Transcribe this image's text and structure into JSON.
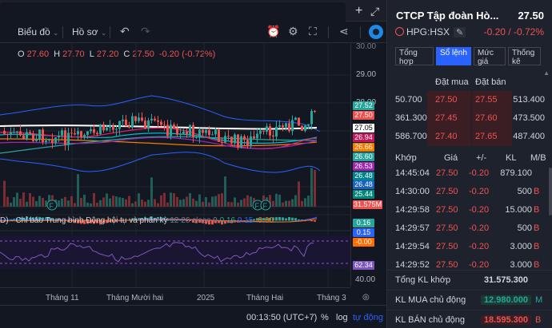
{
  "tabstrip": {
    "add": "+",
    "expand": "⤢"
  },
  "toolbar": {
    "indicators_label": "Biểu đồ",
    "profile_label": "Hồ sơ"
  },
  "legend": {
    "o_label": "O",
    "o": "27.60",
    "h_label": "H",
    "h": "27.70",
    "l_label": "L",
    "l": "27.20",
    "c_label": "C",
    "c": "27.50",
    "change": "-0.20 (-0.72%)"
  },
  "price_axis": {
    "ticks": [
      "30.00",
      "29.00",
      "28.00"
    ],
    "tags": [
      {
        "text": "27.52",
        "color": "#26a69a"
      },
      {
        "text": "27.50",
        "color": "#ef5350"
      },
      {
        "text": "27.05",
        "color": "#ffffff"
      },
      {
        "text": "26.94",
        "color": "#c2185b"
      },
      {
        "text": "26.66",
        "color": "#f57c00"
      },
      {
        "text": "26.60",
        "color": "#26a69a"
      },
      {
        "text": "26.53",
        "color": "#9c27b0"
      },
      {
        "text": "26.48",
        "color": "#00838f"
      },
      {
        "text": "26.48",
        "color": "#1565c0"
      },
      {
        "text": "25.44",
        "color": "#00897b"
      },
      {
        "text": "31.575M",
        "color": "#ef5350"
      }
    ],
    "macd_tags": [
      {
        "text": "0.16",
        "color": "#26a69a"
      },
      {
        "text": "0.15",
        "color": "#2962ff"
      },
      {
        "text": "-0.00",
        "color": "#ff6d00"
      }
    ],
    "rsi_ticks": [
      "62.34",
      "40.00"
    ]
  },
  "macd": {
    "prefix": "D) ·",
    "name": "Chỉ báo Trung bình Động hội tụ và phân kỳ",
    "params": "12 26 close 9",
    "v1": "0.16",
    "v2": "0.15",
    "v3": "-0.00"
  },
  "time_axis": {
    "labels": [
      "Tháng 11",
      "Tháng Mười hai",
      "2025",
      "Tháng Hai",
      "Tháng 3"
    ]
  },
  "bottom_bar": {
    "time": "00:13:50 (UTC+7)",
    "percent": "%",
    "log": "log",
    "auto": "tự động"
  },
  "panel": {
    "title": "CTCP Tập đoàn Hò...",
    "price": "27.50",
    "symbol": "HPG:HSX",
    "change": "-0.20 / -0.72%",
    "tabs": [
      "Tổng hợp",
      "Sổ lệnh",
      "Mức giá",
      "Thống kê"
    ],
    "orderbook_headers": {
      "bid": "Đặt mua",
      "ask": "Đặt bán"
    },
    "orderbook": [
      {
        "bid_vol": "50.700",
        "bid": "27.50",
        "ask": "27.55",
        "ask_vol": "513.400"
      },
      {
        "bid_vol": "361.300",
        "bid": "27.45",
        "ask": "27.60",
        "ask_vol": "473.500"
      },
      {
        "bid_vol": "586.700",
        "bid": "27.40",
        "ask": "27.65",
        "ask_vol": "487.400"
      }
    ],
    "match_headers": [
      "Khớp",
      "Giá",
      "+/-",
      "KL",
      "M/B"
    ],
    "matches": [
      {
        "time": "14:45:04",
        "price": "27.50",
        "chg": "-0.20",
        "vol": "879.100",
        "side": ""
      },
      {
        "time": "14:30:00",
        "price": "27.50",
        "chg": "-0.20",
        "vol": "500",
        "side": "B"
      },
      {
        "time": "14:29:58",
        "price": "27.50",
        "chg": "-0.20",
        "vol": "15.000",
        "side": "B"
      },
      {
        "time": "14:29:57",
        "price": "27.50",
        "chg": "-0.20",
        "vol": "500",
        "side": "B"
      },
      {
        "time": "14:29:54",
        "price": "27.50",
        "chg": "-0.20",
        "vol": "3.000",
        "side": "B"
      },
      {
        "time": "14:29:52",
        "price": "27.50",
        "chg": "-0.20",
        "vol": "3.000",
        "side": "B"
      }
    ],
    "summary": [
      {
        "label": "Tổng KL khớp",
        "value": "31.575.300",
        "tag": ""
      },
      {
        "label": "KL MUA chủ động",
        "value": "12.980.000",
        "tag": "M"
      },
      {
        "label": "KL BÁN chủ động",
        "value": "18.595.300",
        "tag": "B"
      }
    ]
  }
}
